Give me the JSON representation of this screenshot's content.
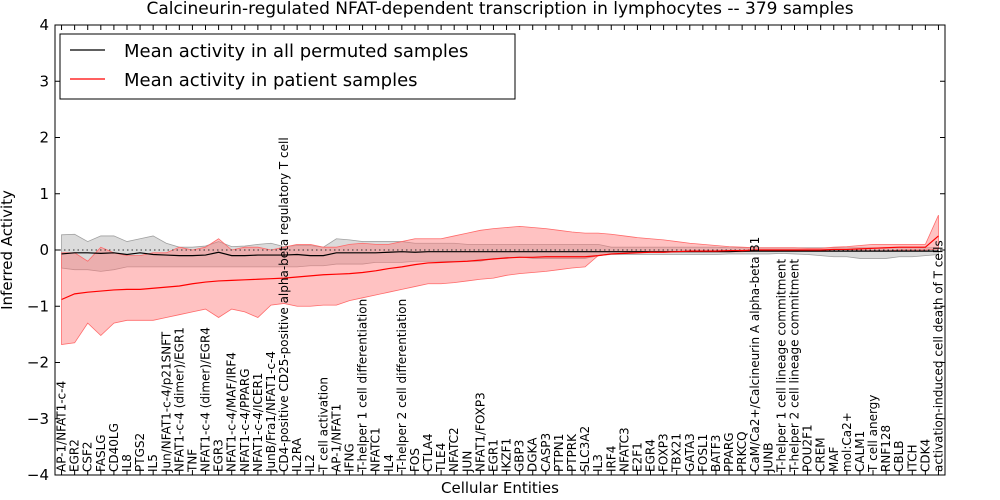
{
  "chart_data": {
    "type": "line",
    "title": "Calcineurin-regulated NFAT-dependent transcription in lymphocytes -- 379 samples",
    "xlabel": "Cellular Entities",
    "ylabel": "Inferred Activity",
    "ylim": [
      -4,
      4
    ],
    "yticks": [
      4,
      3,
      2,
      1,
      0,
      -1,
      -2,
      -3,
      -4
    ],
    "grid": false,
    "legend_position": "top-left",
    "categories": [
      "AP-1/NFAT1-c-4",
      "EGR2",
      "CSF2",
      "FASLG",
      "CD40LG",
      "IL8",
      "PTGS2",
      "IL5",
      "Jun/NFAT1-c-4/p21SNFT",
      "NFAT1-c-4 (dimer)/EGR1",
      "TNF",
      "NFAT1-c-4 (dimer)/EGR4",
      "EGR3",
      "NFAT1-c-4/MAF/IRF4",
      "NFAT1-c-4/PPARG",
      "NFAT1-c-4/ICER1",
      "JunB/Fra1/NFAT1-c-4",
      "CD4-positive CD25-positive alpha-beta regulatory T cell",
      "IL2RA",
      "IL2",
      "T cell activation",
      "AP-1/NFAT1",
      "IFNG",
      "T-helper 1 cell differentiation",
      "NFATC1",
      "IL4",
      "T-helper 2 cell differentiation",
      "FOS",
      "CTLA4",
      "TLE4",
      "NFATC2",
      "JUN",
      "NFAT1/FOXP3",
      "EGR1",
      "IKZF1",
      "GBP3",
      "DGKA",
      "CASP3",
      "PTPN1",
      "PTPRK",
      "SLC3A2",
      "IL3",
      "IRF4",
      "NFATC3",
      "E2F1",
      "EGR4",
      "FOXP3",
      "TBX21",
      "GATA3",
      "FOSL1",
      "BATF3",
      "PPARG",
      "PRKCQ",
      "CaM/Ca2+/Calcineurin A alpha-beta B1",
      "JUNB",
      "T-helper 1 cell lineage commitment",
      "T-helper 2 cell lineage commitment",
      "POU2F1",
      "CREM",
      "MAF",
      "mol:Ca2+",
      "CALM1",
      "T cell anergy",
      "RNF128",
      "CBLB",
      "ITCH",
      "CDK4",
      "activation-induced cell death of T cells"
    ],
    "series": [
      {
        "name": "Mean activity in all permuted samples",
        "color": "#000000",
        "values": [
          -0.07,
          -0.05,
          -0.05,
          -0.06,
          -0.05,
          -0.08,
          -0.05,
          -0.08,
          -0.09,
          -0.1,
          -0.1,
          -0.09,
          -0.04,
          -0.1,
          -0.1,
          -0.09,
          -0.09,
          -0.09,
          -0.08,
          -0.1,
          -0.1,
          -0.05,
          -0.05,
          -0.05,
          -0.05,
          -0.04,
          -0.03,
          -0.04,
          -0.03,
          -0.03,
          -0.03,
          -0.03,
          -0.03,
          -0.03,
          -0.03,
          -0.03,
          -0.03,
          -0.03,
          -0.03,
          -0.03,
          -0.03,
          -0.03,
          -0.03,
          -0.03,
          -0.03,
          -0.03,
          -0.03,
          -0.03,
          -0.03,
          -0.03,
          -0.03,
          -0.03,
          -0.02,
          -0.02,
          -0.02,
          -0.02,
          -0.02,
          -0.02,
          -0.02,
          -0.02,
          -0.02,
          -0.02,
          -0.02,
          -0.02,
          -0.02,
          -0.02,
          -0.02,
          -0.02
        ],
        "band_upper": [
          0.27,
          0.28,
          0.15,
          0.25,
          0.25,
          0.15,
          0.2,
          0.25,
          0.12,
          0.05,
          0.05,
          0.07,
          0.15,
          0.06,
          0.07,
          0.1,
          0.12,
          0.06,
          0.08,
          0.08,
          0.05,
          0.2,
          0.18,
          0.15,
          0.15,
          0.15,
          0.15,
          0.12,
          0.12,
          0.12,
          0.12,
          0.1,
          0.1,
          0.1,
          0.1,
          0.1,
          0.1,
          0.1,
          0.1,
          0.1,
          0.1,
          0.1,
          0.05,
          0.05,
          0.05,
          0.05,
          0.05,
          0.05,
          0.05,
          0.05,
          0.05,
          0.04,
          0.04,
          0.04,
          0.04,
          0.04,
          0.04,
          0.04,
          0.04,
          0.04,
          0.04,
          0.04,
          0.04,
          0.04,
          0.04,
          0.04,
          0.04,
          0.04
        ],
        "band_lower": [
          -0.32,
          -0.35,
          -0.35,
          -0.38,
          -0.35,
          -0.3,
          -0.3,
          -0.3,
          -0.3,
          -0.3,
          -0.3,
          -0.3,
          -0.3,
          -0.3,
          -0.3,
          -0.3,
          -0.3,
          -0.3,
          -0.3,
          -0.28,
          -0.28,
          -0.25,
          -0.25,
          -0.25,
          -0.22,
          -0.22,
          -0.22,
          -0.2,
          -0.2,
          -0.2,
          -0.2,
          -0.2,
          -0.2,
          -0.15,
          -0.15,
          -0.12,
          -0.15,
          -0.15,
          -0.15,
          -0.15,
          -0.15,
          -0.1,
          -0.08,
          -0.08,
          -0.08,
          -0.08,
          -0.08,
          -0.08,
          -0.08,
          -0.08,
          -0.08,
          -0.07,
          -0.07,
          -0.07,
          -0.07,
          -0.06,
          -0.07,
          -0.08,
          -0.1,
          -0.12,
          -0.12,
          -0.15,
          -0.15,
          -0.15,
          -0.12,
          -0.12,
          -0.1,
          -0.08
        ]
      },
      {
        "name": "Mean activity in patient samples",
        "color": "#ff0000",
        "values": [
          -0.88,
          -0.78,
          -0.75,
          -0.73,
          -0.71,
          -0.7,
          -0.7,
          -0.68,
          -0.66,
          -0.64,
          -0.6,
          -0.57,
          -0.55,
          -0.54,
          -0.53,
          -0.52,
          -0.51,
          -0.5,
          -0.48,
          -0.46,
          -0.44,
          -0.43,
          -0.42,
          -0.4,
          -0.37,
          -0.33,
          -0.3,
          -0.26,
          -0.23,
          -0.22,
          -0.21,
          -0.2,
          -0.18,
          -0.16,
          -0.14,
          -0.13,
          -0.13,
          -0.12,
          -0.12,
          -0.12,
          -0.12,
          -0.1,
          -0.07,
          -0.06,
          -0.05,
          -0.04,
          -0.04,
          -0.03,
          -0.02,
          -0.02,
          -0.02,
          -0.01,
          -0.01,
          0.0,
          0.0,
          0.0,
          0.0,
          0.0,
          0.0,
          0.01,
          0.01,
          0.02,
          0.03,
          0.04,
          0.05,
          0.05,
          0.05,
          0.25
        ],
        "band_upper": [
          -0.05,
          -0.05,
          -0.2,
          0.05,
          -0.05,
          -0.1,
          -0.1,
          -0.05,
          -0.05,
          0.05,
          0.0,
          0.05,
          0.2,
          0.0,
          0.05,
          0.05,
          0.0,
          0.05,
          0.1,
          0.1,
          0.05,
          0.05,
          0.1,
          0.12,
          0.1,
          0.1,
          0.15,
          0.2,
          0.2,
          0.2,
          0.25,
          0.3,
          0.35,
          0.38,
          0.4,
          0.42,
          0.4,
          0.38,
          0.35,
          0.32,
          0.3,
          0.3,
          0.28,
          0.25,
          0.22,
          0.2,
          0.18,
          0.15,
          0.12,
          0.1,
          0.08,
          0.06,
          0.05,
          0.04,
          0.04,
          0.04,
          0.04,
          0.03,
          0.03,
          0.05,
          0.06,
          0.08,
          0.1,
          0.1,
          0.1,
          0.1,
          0.1,
          0.62
        ],
        "band_lower": [
          -1.68,
          -1.65,
          -1.3,
          -1.52,
          -1.3,
          -1.25,
          -1.25,
          -1.25,
          -1.2,
          -1.15,
          -1.1,
          -1.05,
          -1.2,
          -1.05,
          -1.1,
          -1.2,
          -0.98,
          -0.95,
          -1.0,
          -1.0,
          -0.98,
          -0.98,
          -0.9,
          -0.85,
          -0.8,
          -0.75,
          -0.7,
          -0.65,
          -0.6,
          -0.6,
          -0.58,
          -0.55,
          -0.52,
          -0.5,
          -0.45,
          -0.42,
          -0.4,
          -0.38,
          -0.35,
          -0.32,
          -0.3,
          -0.1,
          -0.07,
          -0.06,
          -0.05,
          -0.04,
          -0.04,
          -0.03,
          -0.03,
          -0.03,
          -0.03,
          -0.03,
          -0.03,
          -0.02,
          -0.02,
          -0.02,
          -0.02,
          -0.02,
          -0.02,
          -0.02,
          -0.02,
          -0.02,
          -0.02,
          -0.02,
          0.0,
          0.0,
          0.0,
          0.02
        ]
      }
    ],
    "zero_line": {
      "y": 0,
      "style": "dotted"
    }
  }
}
